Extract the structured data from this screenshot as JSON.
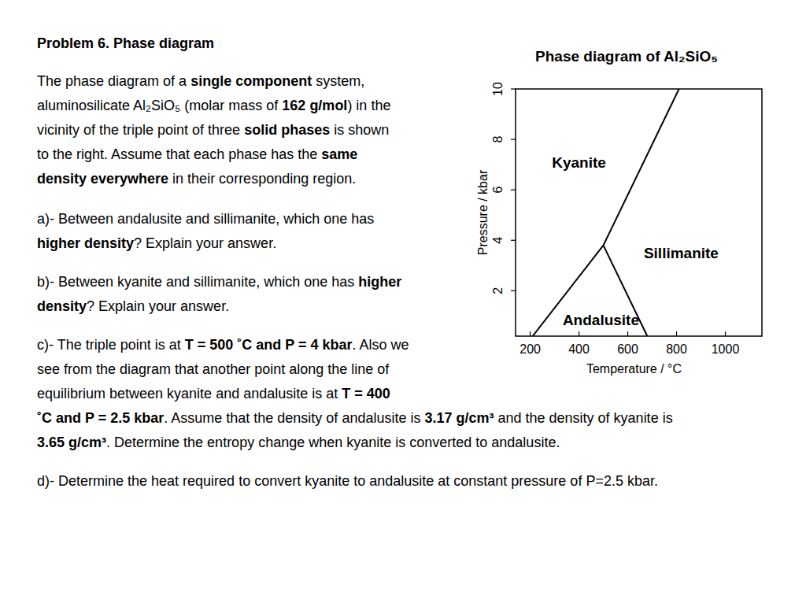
{
  "problem": {
    "title": "Problem 6. Phase diagram",
    "paragraphs": [
      {
        "lines": [
          [
            {
              "text": "The phase diagram of a "
            },
            {
              "text": "single component",
              "bold": true
            },
            {
              "text": " system,"
            }
          ],
          [
            {
              "text": "aluminosilicate Al₂SiO₅ (molar mass of "
            },
            {
              "text": "162 g/mol",
              "bold": true
            },
            {
              "text": ") in the"
            }
          ],
          [
            {
              "text": "vicinity of the triple point of three "
            },
            {
              "text": "solid phases",
              "bold": true
            },
            {
              "text": " is shown"
            }
          ],
          [
            {
              "text": "to the right. Assume that each phase has the "
            },
            {
              "text": "same",
              "bold": true
            }
          ],
          [
            {
              "text": "density everywhere",
              "bold": true
            },
            {
              "text": " in their corresponding region."
            }
          ]
        ]
      },
      {
        "lines": [
          [
            {
              "text": "a)- Between andalusite and sillimanite, which one has"
            }
          ],
          [
            {
              "text": "higher density",
              "bold": true
            },
            {
              "text": "? Explain your answer."
            }
          ]
        ]
      },
      {
        "lines": [
          [
            {
              "text": "b)- Between kyanite and sillimanite, which one has "
            },
            {
              "text": "higher",
              "bold": true
            }
          ],
          [
            {
              "text": "density",
              "bold": true
            },
            {
              "text": "? Explain your answer."
            }
          ]
        ]
      },
      {
        "lines": [
          [
            {
              "text": "c)- The triple point is at "
            },
            {
              "text": "T = 500 ˚C and  P = 4 kbar",
              "bold": true
            },
            {
              "text": ". Also we"
            }
          ],
          [
            {
              "text": "see from the diagram that another point along the line of"
            }
          ],
          [
            {
              "text": "equilibrium between kyanite and andalusite is at "
            },
            {
              "text": "T = 400",
              "bold": true
            }
          ],
          [
            {
              "text": "˚C and  P = 2.5 kbar",
              "bold": true
            },
            {
              "text": ". Assume that the density of andalusite is "
            },
            {
              "text": "3.17 g/cm³",
              "bold": true
            },
            {
              "text": " and the density of kyanite is"
            }
          ],
          [
            {
              "text": "3.65 g/cm³",
              "bold": true
            },
            {
              "text": ". Determine the entropy change when kyanite is converted to andalusite."
            }
          ]
        ]
      },
      {
        "lines": [
          [
            {
              "text": "d)- Determine the heat required to convert kyanite to andalusite at constant pressure of P=2.5 kbar."
            }
          ]
        ]
      }
    ]
  },
  "chart_data": {
    "type": "line",
    "title": "Phase diagram of Al₂SiO₅",
    "x_label": "Temperature / °C",
    "y_label": "Pressure / kbar",
    "xlim": [
      140,
      1150
    ],
    "ylim": [
      0.2,
      10
    ],
    "xticks": [
      200,
      400,
      600,
      800,
      1000
    ],
    "yticks": [
      2,
      4,
      6,
      8,
      10
    ],
    "color": "#000000",
    "series": [
      {
        "x": [
          210,
          500
        ],
        "values": [
          0.2,
          3.8
        ]
      },
      {
        "x": [
          500,
          680
        ],
        "values": [
          3.8,
          0.2
        ]
      },
      {
        "x": [
          500,
          810
        ],
        "values": [
          3.8,
          10
        ]
      }
    ],
    "annotations": [
      {
        "text": "Kyanite",
        "x": 400,
        "y": 7.1
      },
      {
        "text": "Sillimanite",
        "x": 819,
        "y": 3.5
      },
      {
        "text": "Andalusite",
        "x": 490,
        "y": 0.85
      }
    ]
  }
}
